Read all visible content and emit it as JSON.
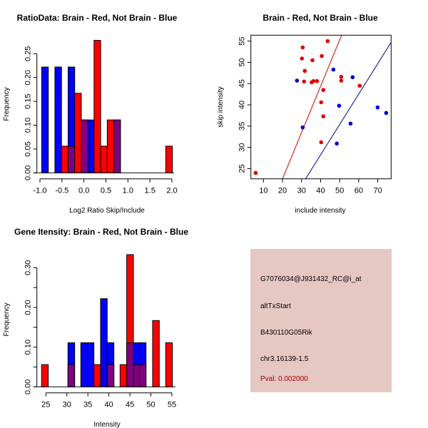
{
  "colors": {
    "red": "#ff0000",
    "blue": "#0000ff",
    "overlap": "#800080",
    "scatter_red": "#e00000",
    "scatter_blue": "#0000d0",
    "line_red": "#d00000",
    "line_blue": "#000090",
    "info_bg": "#e6c8c3",
    "pval": "#a00000"
  },
  "chart_data": [
    {
      "type": "bar",
      "title": "RatioData: Brain - Red, Not Brain - Blue",
      "xlabel": "Log2 Ratio Skip/Include",
      "ylabel": "Frequency",
      "xlim": [
        -1.0,
        2.0
      ],
      "ylim": [
        0,
        0.28
      ],
      "xticks": [
        "-1.0",
        "-0.5",
        "0.0",
        "0.5",
        "1.0",
        "1.5",
        "2.0"
      ],
      "xtick_values": [
        -1.0,
        -0.5,
        0.0,
        0.5,
        1.0,
        1.5,
        2.0
      ],
      "yticks": [
        "0.00",
        "0.05",
        "0.10",
        "0.15",
        "0.20",
        "0.25"
      ],
      "ytick_values": [
        0,
        0.05,
        0.1,
        0.15,
        0.2,
        0.25
      ],
      "series": [
        {
          "name": "Not Brain",
          "color": "blue",
          "bins": [
            [
              -0.96,
              -0.81,
              0.222
            ],
            [
              -0.66,
              -0.51,
              0.222
            ],
            [
              -0.36,
              -0.21,
              0.222
            ],
            [
              -0.06,
              0.09,
              0.111
            ],
            [
              0.09,
              0.23,
              0.111
            ],
            [
              0.68,
              0.83,
              0.111
            ]
          ]
        },
        {
          "name": "Brain",
          "color": "red",
          "bins": [
            [
              -0.51,
              -0.36,
              0.056
            ],
            [
              -0.36,
              -0.21,
              0.056
            ],
            [
              -0.21,
              -0.06,
              0.167
            ],
            [
              -0.06,
              0.09,
              0.111
            ],
            [
              0.23,
              0.38,
              0.278
            ],
            [
              0.38,
              0.53,
              0.056
            ],
            [
              0.53,
              0.68,
              0.111
            ],
            [
              0.68,
              0.83,
              0.111
            ],
            [
              1.86,
              2.01,
              0.056
            ]
          ]
        }
      ]
    },
    {
      "type": "scatter",
      "title": "Brain - Red, Not Brain - Blue",
      "xlabel": "include intensity",
      "ylabel": "skip intensity",
      "xlim": [
        3.4,
        77.0
      ],
      "ylim": [
        22.6,
        56.4
      ],
      "xticks": [
        "10",
        "20",
        "30",
        "40",
        "50",
        "60",
        "70"
      ],
      "xtick_values": [
        10,
        20,
        30,
        40,
        50,
        60,
        70
      ],
      "yticks": [
        "25",
        "30",
        "35",
        "40",
        "45",
        "50",
        "55"
      ],
      "ytick_values": [
        25,
        30,
        35,
        40,
        45,
        50,
        55
      ],
      "series": [
        {
          "name": "Brain",
          "color": "scatter_red",
          "points": [
            [
              5.9,
              24.0
            ],
            [
              30.6,
              53.5
            ],
            [
              30.2,
              50.9
            ],
            [
              31.7,
              48.0
            ],
            [
              31.3,
              45.5
            ],
            [
              35.7,
              50.5
            ],
            [
              35.3,
              45.3
            ],
            [
              36.2,
              45.6
            ],
            [
              38.1,
              45.6
            ],
            [
              43.7,
              55.0
            ],
            [
              40.6,
              51.5
            ],
            [
              41.4,
              43.5
            ],
            [
              40.3,
              40.6
            ],
            [
              41.4,
              37.3
            ],
            [
              40.3,
              31.2
            ],
            [
              50.8,
              46.6
            ],
            [
              50.8,
              45.7
            ],
            [
              60.5,
              44.5
            ]
          ],
          "fit": {
            "intercept": 0.8,
            "slope": 1.09,
            "color": "line_red"
          }
        },
        {
          "name": "Not Brain",
          "color": "scatter_blue",
          "points": [
            [
              27.6,
              45.7
            ],
            [
              46.7,
              48.3
            ],
            [
              56.8,
              46.5
            ],
            [
              49.7,
              39.8
            ],
            [
              30.6,
              34.7
            ],
            [
              55.7,
              35.6
            ],
            [
              48.5,
              30.9
            ],
            [
              69.9,
              39.4
            ],
            [
              74.4,
              38.1
            ]
          ],
          "fit": {
            "intercept": -0.35,
            "slope": 0.715,
            "color": "line_blue"
          }
        }
      ]
    },
    {
      "type": "bar",
      "title": "Gene Itensity: Brain - Red, Not Brain - Blue",
      "xlabel": "Intensity",
      "ylabel": "Frequency",
      "xlim": [
        22.15,
        55.3
      ],
      "ylim": [
        0,
        0.34
      ],
      "xticks": [
        "25",
        "30",
        "35",
        "40",
        "45",
        "50",
        "55"
      ],
      "xtick_values": [
        25,
        30,
        35,
        40,
        45,
        50,
        55
      ],
      "yticks": [
        "0.00",
        "",
        "0.10",
        "",
        "0.20",
        "",
        "0.30"
      ],
      "ytick_values": [
        0,
        0.05,
        0.1,
        0.15,
        0.2,
        0.25,
        0.3
      ],
      "series": [
        {
          "name": "Not Brain",
          "color": "blue",
          "bins": [
            [
              30.26,
              31.85,
              0.111
            ],
            [
              33.32,
              34.9,
              0.111
            ],
            [
              34.9,
              36.43,
              0.111
            ],
            [
              38.02,
              39.6,
              0.222
            ],
            [
              39.6,
              41.19,
              0.111
            ],
            [
              44.24,
              45.83,
              0.111
            ],
            [
              45.83,
              47.3,
              0.111
            ],
            [
              47.3,
              48.83,
              0.111
            ]
          ]
        },
        {
          "name": "Brain",
          "color": "red",
          "bins": [
            [
              23.98,
              25.57,
              0.056
            ],
            [
              30.26,
              31.85,
              0.056
            ],
            [
              36.43,
              38.02,
              0.056
            ],
            [
              39.6,
              41.19,
              0.056
            ],
            [
              42.66,
              44.24,
              0.056
            ],
            [
              44.24,
              45.83,
              0.333
            ],
            [
              45.83,
              47.3,
              0.056
            ],
            [
              47.3,
              48.83,
              0.056
            ],
            [
              50.41,
              51.99,
              0.167
            ],
            [
              53.52,
              55.11,
              0.111
            ]
          ]
        }
      ]
    }
  ],
  "info": {
    "probe_id": "G7076034@J931432_RC@i_at",
    "event_type": "altTxStart",
    "gene": "B430110G05Rik",
    "location": "chr3.16139-1.5",
    "pval": "Pval: 0.002000"
  }
}
